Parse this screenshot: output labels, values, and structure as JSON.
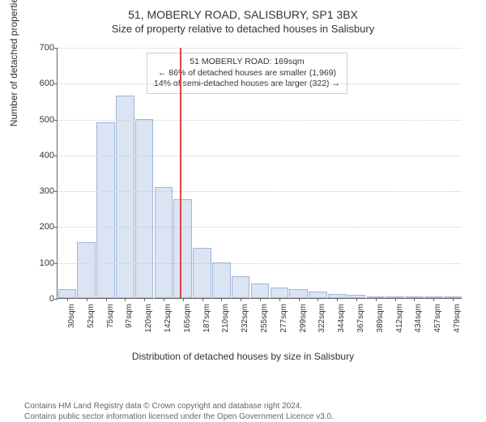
{
  "title_main": "51, MOBERLY ROAD, SALISBURY, SP1 3BX",
  "title_sub": "Size of property relative to detached houses in Salisbury",
  "y_label": "Number of detached properties",
  "x_label": "Distribution of detached houses by size in Salisbury",
  "footer_line1": "Contains HM Land Registry data © Crown copyright and database right 2024.",
  "footer_line2": "Contains public sector information licensed under the Open Government Licence v3.0.",
  "chart": {
    "type": "histogram",
    "ylim": [
      0,
      700
    ],
    "ytick_step": 100,
    "y_ticks": [
      0,
      100,
      200,
      300,
      400,
      500,
      600,
      700
    ],
    "x_categories": [
      "30sqm",
      "52sqm",
      "75sqm",
      "97sqm",
      "120sqm",
      "142sqm",
      "165sqm",
      "187sqm",
      "210sqm",
      "232sqm",
      "255sqm",
      "277sqm",
      "299sqm",
      "322sqm",
      "344sqm",
      "367sqm",
      "389sqm",
      "412sqm",
      "434sqm",
      "457sqm",
      "479sqm"
    ],
    "values": [
      25,
      155,
      490,
      565,
      500,
      310,
      275,
      140,
      100,
      60,
      40,
      30,
      25,
      18,
      12,
      8,
      5,
      3,
      0,
      3,
      0
    ],
    "bar_fill": "#dbe4f3",
    "bar_stroke": "#9fb5d8",
    "background_color": "#ffffff",
    "grid_color": "#cccccc",
    "axis_color": "#666666",
    "bar_width": 0.95,
    "reference_line": {
      "x_value": 169,
      "x_range": [
        30,
        490
      ],
      "color": "#d94545",
      "width": 2
    },
    "annotation": {
      "line1": "51 MOBERLY ROAD: 169sqm",
      "line2": "← 86% of detached houses are smaller (1,969)",
      "line3": "14% of semi-detached houses are larger (322) →",
      "border_color": "#d0d0d0",
      "background": "#ffffff",
      "fontsize": 10.5
    },
    "label_fontsize": 12,
    "tick_fontsize": 11,
    "title_fontsize": 14
  }
}
